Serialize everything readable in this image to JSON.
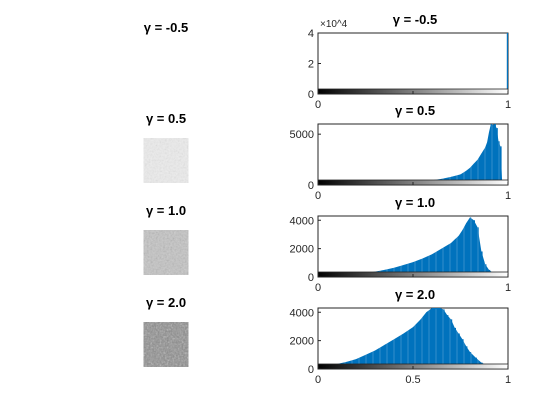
{
  "figure": {
    "panels": [
      {
        "title": "γ = -0.5",
        "image": {
          "tone": "blank"
        }
      },
      {
        "title": "γ = 0.5",
        "image": {
          "tone": "light"
        }
      },
      {
        "title": "γ = 1.0",
        "image": {
          "tone": "mid"
        }
      },
      {
        "title": "γ = 2.0",
        "image": {
          "tone": "dark"
        }
      }
    ]
  },
  "colors": {
    "bar": "#0072bd",
    "axis": "#262626",
    "background": "#ffffff"
  },
  "chart_data": [
    {
      "type": "bar",
      "title": "γ = -0.5",
      "xlim": [
        0,
        1
      ],
      "ylim": [
        0,
        40000
      ],
      "xticks": [
        0,
        0.5,
        1
      ],
      "xtick_labels": [
        "0",
        "",
        "1"
      ],
      "yticks": [
        0,
        20000,
        40000
      ],
      "ytick_labels": [
        "0",
        "2",
        "4"
      ],
      "y_exponent_label": "×10^4",
      "grid": false,
      "colorbar_below_axis": true,
      "series": [
        {
          "x": [
            1.0
          ],
          "values": [
            40000
          ]
        }
      ]
    },
    {
      "type": "bar",
      "title": "γ = 0.5",
      "xlim": [
        0,
        1
      ],
      "ylim": [
        0,
        6000
      ],
      "xticks": [
        0,
        0.5,
        1
      ],
      "xtick_labels": [
        "0",
        "",
        "1"
      ],
      "yticks": [
        0,
        5000
      ],
      "ytick_labels": [
        "0",
        "5000"
      ],
      "grid": false,
      "colorbar_below_axis": true,
      "series": [
        {
          "x": [
            0.3,
            0.35,
            0.4,
            0.45,
            0.5,
            0.55,
            0.6,
            0.65,
            0.7,
            0.75,
            0.78,
            0.8,
            0.82,
            0.84,
            0.86,
            0.88,
            0.89,
            0.9,
            0.91,
            0.92,
            0.93,
            0.94,
            0.95,
            0.96,
            0.97
          ],
          "values": [
            20,
            60,
            110,
            180,
            260,
            350,
            470,
            600,
            800,
            1050,
            1400,
            1700,
            2100,
            2500,
            3100,
            3700,
            4200,
            5200,
            6000,
            5900,
            6000,
            5600,
            4300,
            3800,
            0
          ]
        }
      ]
    },
    {
      "type": "bar",
      "title": "γ = 1.0",
      "xlim": [
        0,
        1
      ],
      "ylim": [
        0,
        4300
      ],
      "xticks": [
        0,
        0.5,
        1
      ],
      "xtick_labels": [
        "0",
        "",
        "1"
      ],
      "yticks": [
        0,
        2000,
        4000
      ],
      "ytick_labels": [
        "0",
        "2000",
        "4000"
      ],
      "grid": false,
      "colorbar_below_axis": true,
      "series": [
        {
          "x": [
            0.1,
            0.15,
            0.2,
            0.25,
            0.3,
            0.35,
            0.4,
            0.45,
            0.5,
            0.55,
            0.6,
            0.65,
            0.7,
            0.72,
            0.74,
            0.76,
            0.78,
            0.8,
            0.82,
            0.84,
            0.86,
            0.88,
            0.9,
            0.92,
            0.94,
            0.96
          ],
          "values": [
            30,
            100,
            180,
            280,
            380,
            500,
            650,
            850,
            1050,
            1300,
            1600,
            2000,
            2400,
            2650,
            2900,
            3300,
            3800,
            4200,
            4000,
            3500,
            1800,
            900,
            500,
            300,
            150,
            50
          ]
        }
      ]
    },
    {
      "type": "bar",
      "title": "γ = 2.0",
      "xlim": [
        0,
        1
      ],
      "ylim": [
        0,
        4300
      ],
      "xticks": [
        0,
        0.5,
        1
      ],
      "xtick_labels": [
        "0",
        "0.5",
        "1"
      ],
      "yticks": [
        0,
        2000,
        4000
      ],
      "ytick_labels": [
        "0",
        "2000",
        "4000"
      ],
      "grid": false,
      "colorbar_below_axis": true,
      "series": [
        {
          "x": [
            0.02,
            0.05,
            0.1,
            0.15,
            0.2,
            0.25,
            0.3,
            0.35,
            0.4,
            0.45,
            0.5,
            0.54,
            0.57,
            0.6,
            0.62,
            0.64,
            0.66,
            0.68,
            0.7,
            0.72,
            0.74,
            0.76,
            0.78,
            0.8,
            0.83,
            0.86,
            0.9,
            0.95
          ],
          "values": [
            100,
            200,
            350,
            500,
            700,
            1000,
            1300,
            1700,
            2100,
            2500,
            2950,
            3500,
            4000,
            4300,
            4300,
            4300,
            4200,
            3800,
            3500,
            2900,
            2500,
            2100,
            1600,
            1200,
            800,
            450,
            200,
            50
          ]
        }
      ]
    }
  ]
}
